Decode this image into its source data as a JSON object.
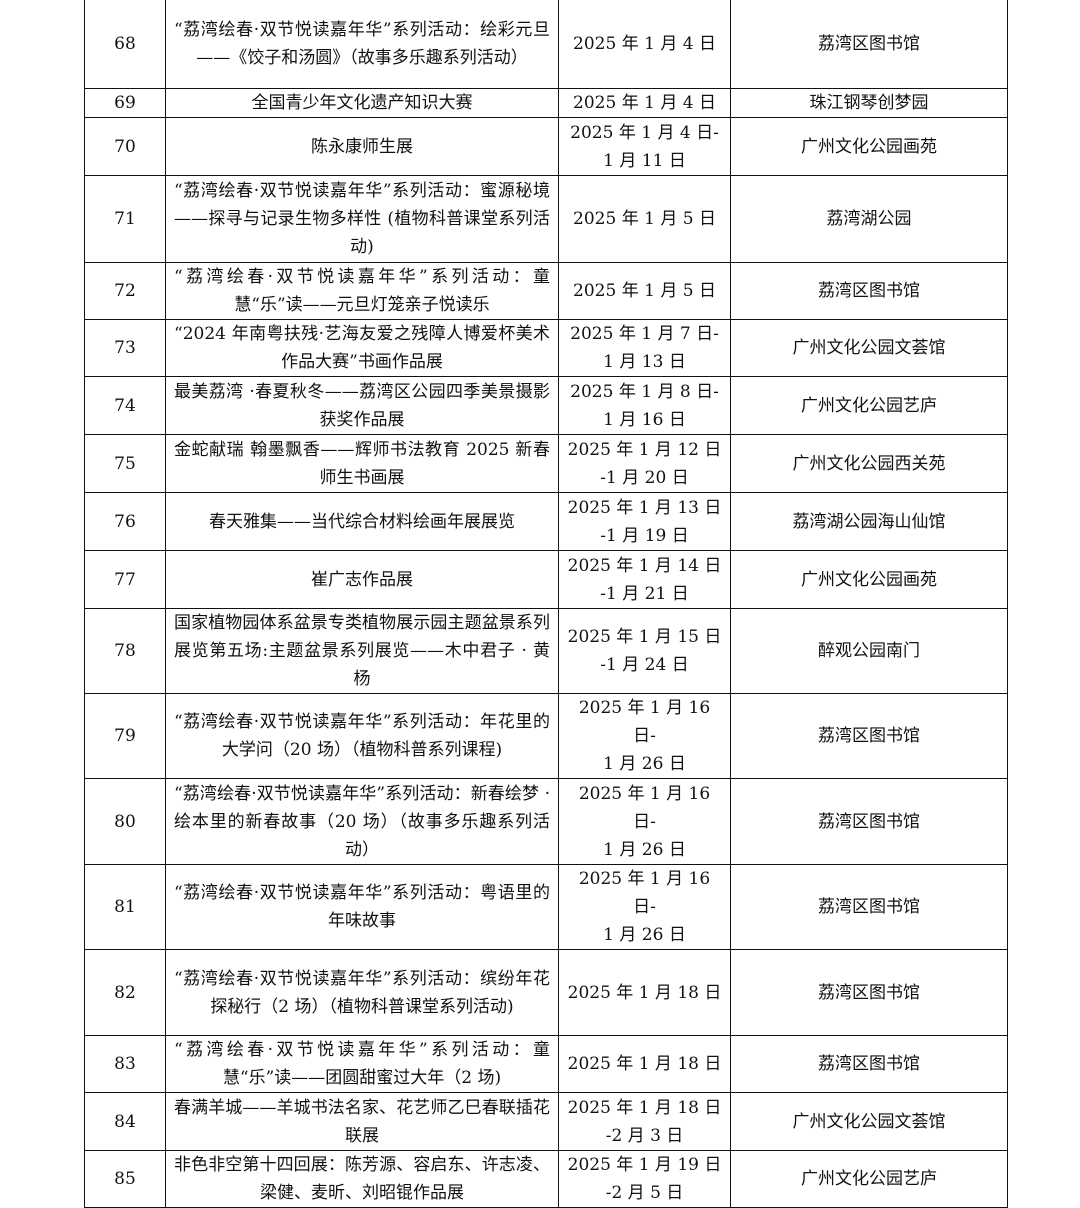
{
  "rows": [
    {
      "no": "68",
      "name": "“荔湾绘春·双节悦读嘉年华”系列活动：绘彩元旦——《饺子和汤圆》（故事多乐趣系列活动）",
      "date": "2025 年 1 月 4 日",
      "venue": "荔湾区图书馆"
    },
    {
      "no": "69",
      "name": "全国青少年文化遗产知识大赛",
      "date": "2025 年 1 月 4 日",
      "venue": "珠江钢琴创梦园"
    },
    {
      "no": "70",
      "name": "陈永康师生展",
      "date": "2025 年 1 月 4 日-\n1 月 11 日",
      "venue": "广州文化公园画苑"
    },
    {
      "no": "71",
      "name": "“荔湾绘春·双节悦读嘉年华”系列活动：蜜源秘境——探寻与记录生物多样性 (植物科普课堂系列活动)",
      "date": "2025 年 1 月 5 日",
      "venue": "荔湾湖公园"
    },
    {
      "no": "72",
      "name": "“荔湾绘春·双节悦读嘉年华”系列活动：童慧“乐”读——元旦灯笼亲子悦读乐",
      "date": "2025 年 1 月 5 日",
      "venue": "荔湾区图书馆"
    },
    {
      "no": "73",
      "name": "“2024 年南粤扶残·艺海友爱之残障人博爱杯美术作品大赛”书画作品展",
      "date": "2025 年 1 月 7 日-\n1 月 13 日",
      "venue": "广州文化公园文荟馆"
    },
    {
      "no": "74",
      "name": "最美荔湾 ·春夏秋冬——荔湾区公园四季美景摄影获奖作品展",
      "date": "2025 年 1 月 8 日-\n1 月 16 日",
      "venue": "广州文化公园艺庐"
    },
    {
      "no": "75",
      "name": "金蛇献瑞 翰墨飘香——辉师书法教育 2025 新春师生书画展",
      "date": "2025 年 1 月 12 日\n-1 月 20 日",
      "venue": "广州文化公园西关苑"
    },
    {
      "no": "76",
      "name": "春天雅集——当代综合材料绘画年展展览",
      "date": "2025 年 1 月 13 日\n-1 月 19 日",
      "venue": "荔湾湖公园海山仙馆"
    },
    {
      "no": "77",
      "name": "崔广志作品展",
      "date": "2025 年 1 月 14 日\n-1 月 21 日",
      "venue": "广州文化公园画苑"
    },
    {
      "no": "78",
      "name": "国家植物园体系盆景专类植物展示园主题盆景系列展览第五场:主题盆景系列展览——木中君子 · 黄杨",
      "date": "2025 年 1 月 15 日\n-1 月 24 日",
      "venue": "醉观公园南门"
    },
    {
      "no": "79",
      "name": "“荔湾绘春·双节悦读嘉年华”系列活动：年花里的大学问（20 场）（植物科普系列课程)",
      "date": "2025 年 1 月 16 日-\n1 月 26 日",
      "venue": "荔湾区图书馆"
    },
    {
      "no": "80",
      "name": "“荔湾绘春·双节悦读嘉年华”系列活动：新春绘梦 · 绘本里的新春故事（20 场）（故事多乐趣系列活动）",
      "date": "2025 年 1 月 16 日-\n1 月 26 日",
      "venue": "荔湾区图书馆"
    },
    {
      "no": "81",
      "name": "“荔湾绘春·双节悦读嘉年华”系列活动：粤语里的年味故事",
      "date": "2025 年 1 月 16 日-\n1 月 26 日",
      "venue": "荔湾区图书馆"
    },
    {
      "no": "82",
      "name": "“荔湾绘春·双节悦读嘉年华”系列活动：缤纷年花探秘行（2 场）（植物科普课堂系列活动)",
      "date": "2025 年 1 月 18 日",
      "venue": "荔湾区图书馆"
    },
    {
      "no": "83",
      "name": "“荔湾绘春·双节悦读嘉年华”系列活动：童慧“乐”读——团圆甜蜜过大年（2 场)",
      "date": "2025 年 1 月 18 日",
      "venue": "荔湾区图书馆"
    },
    {
      "no": "84",
      "name": "春满羊城——羊城书法名家、花艺师乙巳春联插花联展",
      "date": "2025 年 1 月 18 日\n-2 月 3 日",
      "venue": "广州文化公园文荟馆"
    },
    {
      "no": "85",
      "name": "非色非空第十四回展：陈芳源、容启东、许志凌、梁健、麦昕、刘昭锟作品展",
      "date": "2025 年 1 月 19 日\n-2 月 5 日",
      "venue": "广州文化公园艺庐"
    }
  ]
}
